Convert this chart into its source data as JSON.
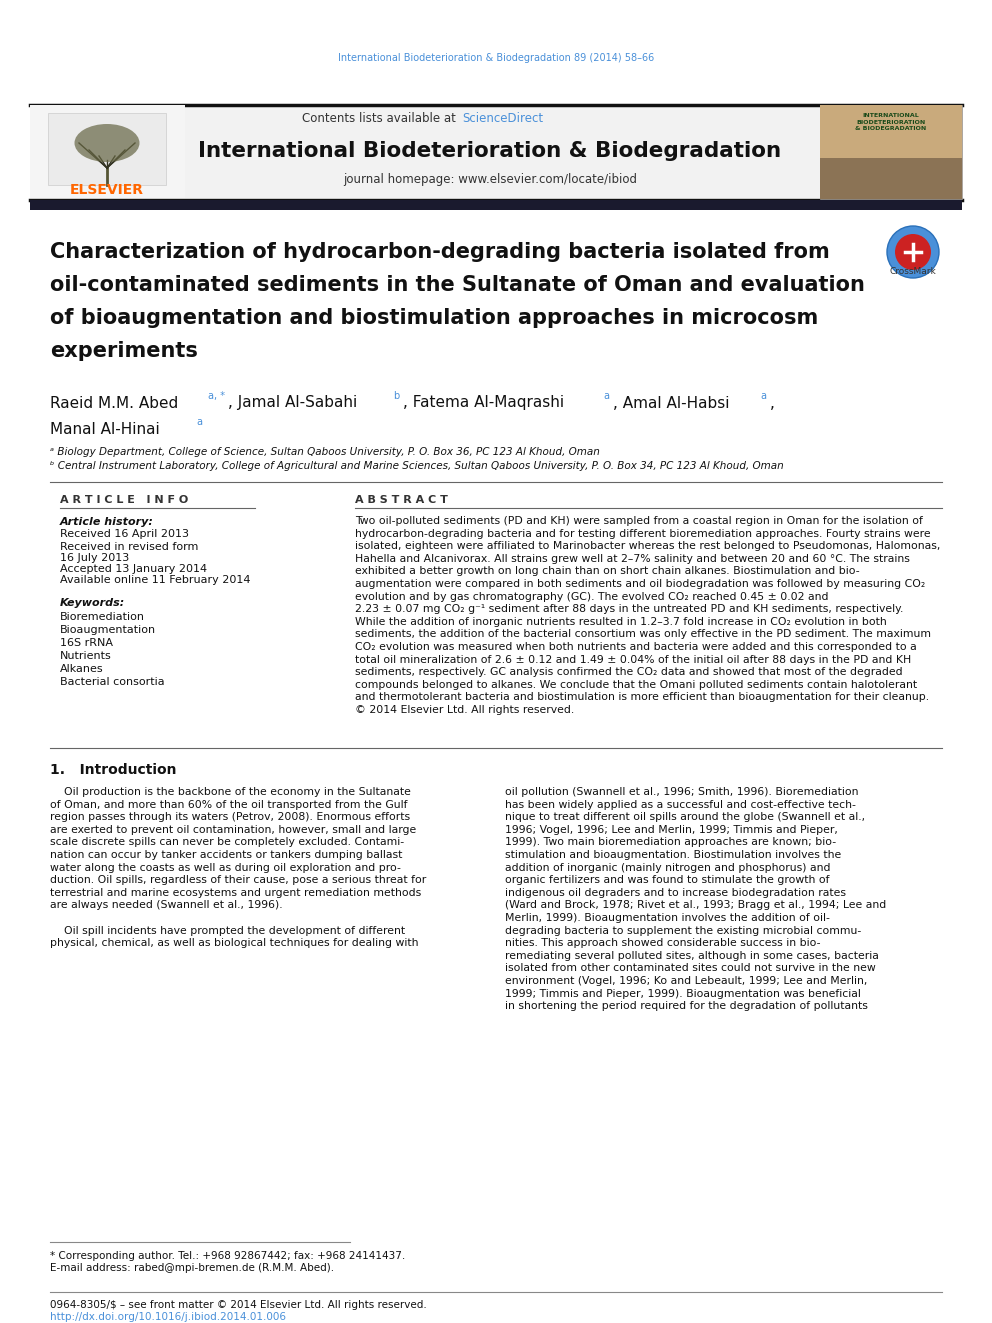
{
  "page_bg": "#ffffff",
  "top_journal_ref": "International Biodeterioration & Biodegradation 89 (2014) 58–66",
  "header_bg": "#f0f0f0",
  "journal_title": "International Biodeterioration & Biodegradation",
  "journal_homepage": "journal homepage: www.elsevier.com/locate/ibiod",
  "elsevier_color": "#ff6600",
  "sciencedirect_color": "#4a90d9",
  "article_title_lines": [
    "Characterization of hydrocarbon-degrading bacteria isolated from",
    "oil-contaminated sediments in the Sultanate of Oman and evaluation",
    "of bioaugmentation and biostimulation approaches in microcosm",
    "experiments"
  ],
  "keywords": [
    "Bioremediation",
    "Bioaugmentation",
    "16S rRNA",
    "Nutrients",
    "Alkanes",
    "Bacterial consortia"
  ],
  "abstract_lines": [
    "Two oil-polluted sediments (PD and KH) were sampled from a coastal region in Oman for the isolation of",
    "hydrocarbon-degrading bacteria and for testing different bioremediation approaches. Fourty strains were",
    "isolated, eighteen were affiliated to Marinobacter whereas the rest belonged to Pseudomonas, Halomonas,",
    "Hahella and Alcanivorax. All strains grew well at 2–7% salinity and between 20 and 60 °C. The strains",
    "exhibited a better growth on long chain than on short chain alkanes. Biostimulation and bio-",
    "augmentation were compared in both sediments and oil biodegradation was followed by measuring CO₂",
    "evolution and by gas chromatography (GC). The evolved CO₂ reached 0.45 ± 0.02 and",
    "2.23 ± 0.07 mg CO₂ g⁻¹ sediment after 88 days in the untreated PD and KH sediments, respectively.",
    "While the addition of inorganic nutrients resulted in 1.2–3.7 fold increase in CO₂ evolution in both",
    "sediments, the addition of the bacterial consortium was only effective in the PD sediment. The maximum",
    "CO₂ evolution was measured when both nutrients and bacteria were added and this corresponded to a",
    "total oil mineralization of 2.6 ± 0.12 and 1.49 ± 0.04% of the initial oil after 88 days in the PD and KH",
    "sediments, respectively. GC analysis confirmed the CO₂ data and showed that most of the degraded",
    "compounds belonged to alkanes. We conclude that the Omani polluted sediments contain halotolerant",
    "and thermotolerant bacteria and biostimulation is more efficient than bioaugmentation for their cleanup.",
    "© 2014 Elsevier Ltd. All rights reserved."
  ],
  "intro_left_lines": [
    "    Oil production is the backbone of the economy in the Sultanate",
    "of Oman, and more than 60% of the oil transported from the Gulf",
    "region passes through its waters (Petrov, 2008). Enormous efforts",
    "are exerted to prevent oil contamination, however, small and large",
    "scale discrete spills can never be completely excluded. Contami-",
    "nation can occur by tanker accidents or tankers dumping ballast",
    "water along the coasts as well as during oil exploration and pro-",
    "duction. Oil spills, regardless of their cause, pose a serious threat for",
    "terrestrial and marine ecosystems and urgent remediation methods",
    "are always needed (Swannell et al., 1996).",
    "",
    "    Oil spill incidents have prompted the development of different",
    "physical, chemical, as well as biological techniques for dealing with"
  ],
  "intro_right_lines": [
    "oil pollution (Swannell et al., 1996; Smith, 1996). Bioremediation",
    "has been widely applied as a successful and cost-effective tech-",
    "nique to treat different oil spills around the globe (Swannell et al.,",
    "1996; Vogel, 1996; Lee and Merlin, 1999; Timmis and Pieper,",
    "1999). Two main bioremediation approaches are known; bio-",
    "stimulation and bioaugmentation. Biostimulation involves the",
    "addition of inorganic (mainly nitrogen and phosphorus) and",
    "organic fertilizers and was found to stimulate the growth of",
    "indigenous oil degraders and to increase biodegradation rates",
    "(Ward and Brock, 1978; Rivet et al., 1993; Bragg et al., 1994; Lee and",
    "Merlin, 1999). Bioaugmentation involves the addition of oil-",
    "degrading bacteria to supplement the existing microbial commu-",
    "nities. This approach showed considerable success in bio-",
    "remediating several polluted sites, although in some cases, bacteria",
    "isolated from other contaminated sites could not survive in the new",
    "environment (Vogel, 1996; Ko and Lebeault, 1999; Lee and Merlin,",
    "1999; Timmis and Pieper, 1999). Bioaugmentation was beneficial",
    "in shortening the period required for the degradation of pollutants"
  ],
  "link_color": "#4a90d9",
  "ref_color": "#4a90d9"
}
